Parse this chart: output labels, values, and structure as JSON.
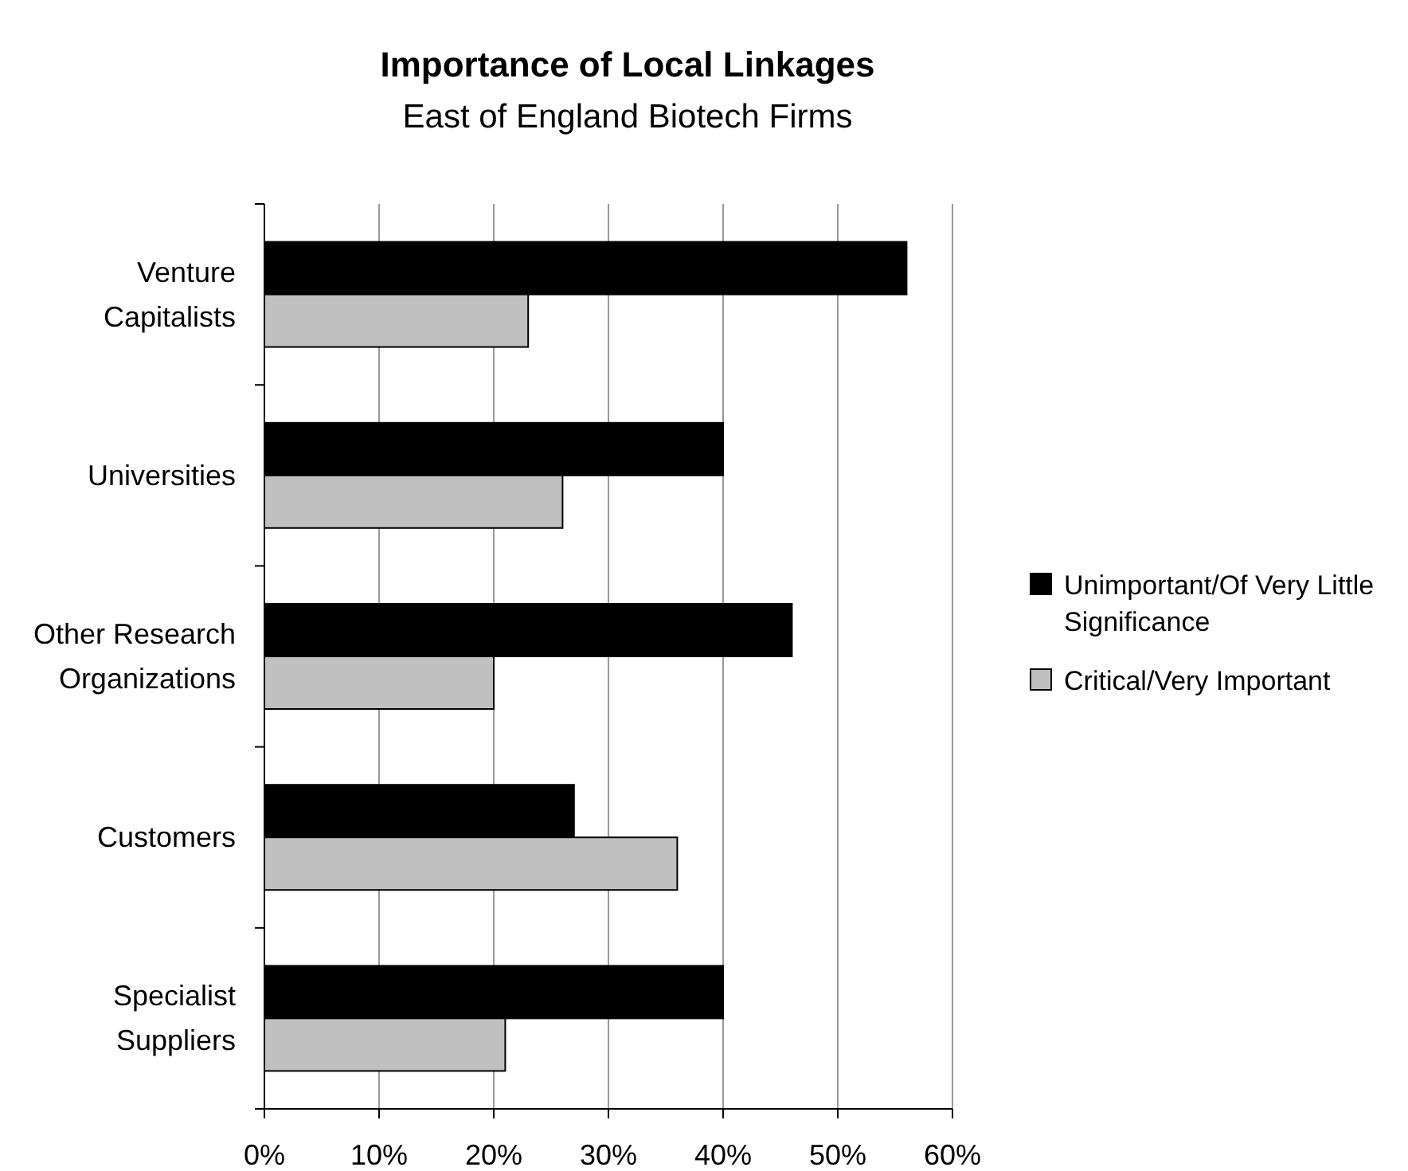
{
  "chart_data": {
    "type": "bar",
    "orientation": "horizontal",
    "title": "Importance of Local Linkages",
    "subtitle": "East of England Biotech Firms",
    "categories": [
      "Venture\nCapitalists",
      "Universities",
      "Other Research\nOrganizations",
      "Customers",
      "Specialist\nSuppliers"
    ],
    "series": [
      {
        "name": "Unimportant/Of Very Little Significance",
        "color": "#000000",
        "values": [
          56,
          40,
          46,
          27,
          40
        ]
      },
      {
        "name": "Critical/Very Important",
        "color": "#c0c0c0",
        "values": [
          23,
          26,
          20,
          36,
          21
        ]
      }
    ],
    "xlim": [
      0,
      60
    ],
    "xticks": [
      {
        "value": 0,
        "label": "0%"
      },
      {
        "value": 10,
        "label": "10%"
      },
      {
        "value": 20,
        "label": "20%"
      },
      {
        "value": 30,
        "label": "30%"
      },
      {
        "value": 40,
        "label": "40%"
      },
      {
        "value": 50,
        "label": "50%"
      },
      {
        "value": 60,
        "label": "60%"
      }
    ],
    "grid": "x",
    "legend": "right"
  }
}
